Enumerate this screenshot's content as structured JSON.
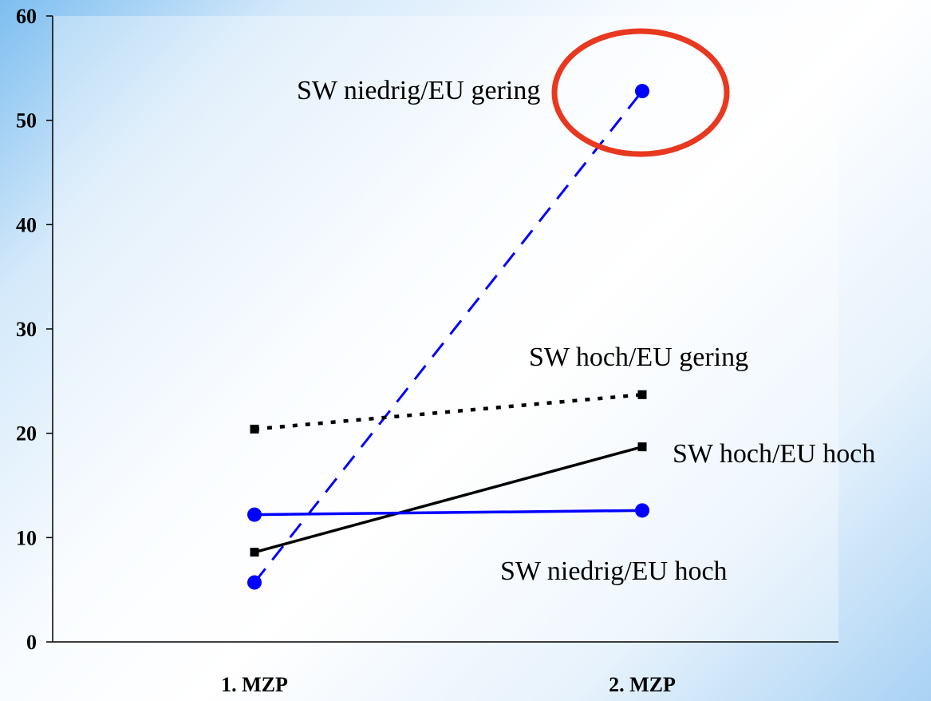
{
  "chart_data": {
    "type": "line",
    "categories": [
      "1. MZP",
      "2. MZP"
    ],
    "ylim": [
      0,
      60
    ],
    "yticks": [
      0,
      10,
      20,
      30,
      40,
      50,
      60
    ],
    "grid": false,
    "legend": "none",
    "series": [
      {
        "name": "SW niedrig/EU gering",
        "values": [
          5.7,
          52.8
        ],
        "color": "#0000ff",
        "line_style": "dashed",
        "marker": "circle"
      },
      {
        "name": "SW hoch/EU gering",
        "values": [
          20.4,
          23.7
        ],
        "color": "#000000",
        "line_style": "dotted",
        "marker": "square"
      },
      {
        "name": "SW hoch/EU hoch",
        "values": [
          8.6,
          18.7
        ],
        "color": "#000000",
        "line_style": "solid",
        "marker": "square"
      },
      {
        "name": "SW niedrig/EU hoch",
        "values": [
          12.2,
          12.6
        ],
        "color": "#0000ff",
        "line_style": "solid",
        "marker": "circle"
      }
    ],
    "highlight": {
      "series": "SW niedrig/EU gering",
      "point": "2. MZP",
      "shape": "ellipse",
      "color": "#e8381f"
    }
  }
}
